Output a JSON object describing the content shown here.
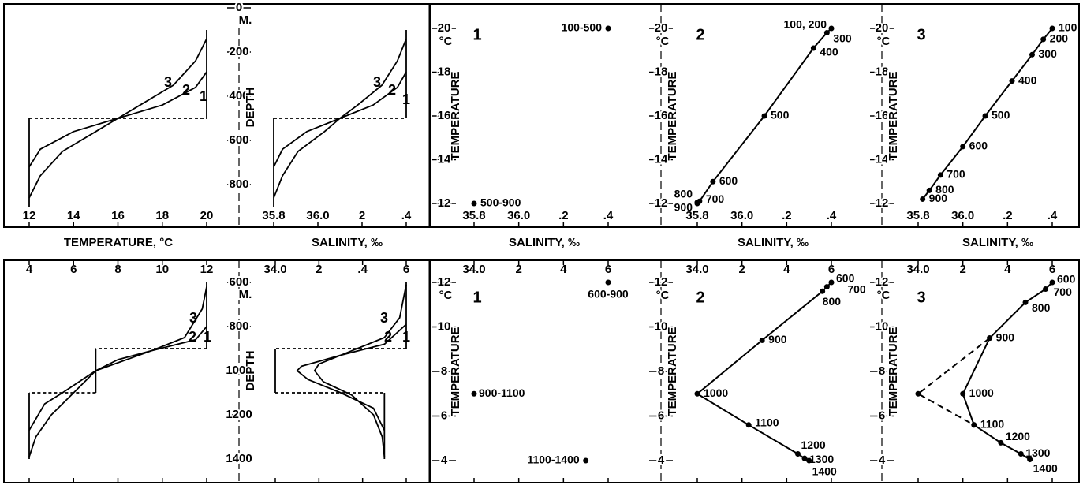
{
  "chart_data": [
    {
      "type": "profile",
      "xlabel": "TEMPERATURE, °C",
      "xlim": [
        12,
        20
      ],
      "xticks": [
        12,
        14,
        16,
        18,
        20
      ],
      "ylim": [
        0,
        900
      ],
      "yticks": [
        0,
        200,
        400,
        600,
        800
      ],
      "ylabel": "DEPTH",
      "yunit": "M.",
      "y_reversed": true,
      "color": "#000",
      "series": [
        {
          "name": "1",
          "style": "step",
          "x": [
            12,
            12,
            20,
            20
          ],
          "values": [
            900,
            500,
            500,
            100
          ]
        },
        {
          "name": "2",
          "x": [
            12,
            12.5,
            14,
            16,
            18,
            19.5,
            20
          ],
          "values": [
            720,
            640,
            560,
            500,
            440,
            360,
            290
          ]
        },
        {
          "name": "3",
          "x": [
            12,
            12.5,
            13.5,
            15,
            16,
            17,
            18.5,
            19.5,
            20
          ],
          "values": [
            860,
            760,
            650,
            560,
            500,
            440,
            350,
            240,
            140
          ]
        }
      ]
    },
    {
      "type": "profile",
      "xlabel": "SALINITY, ‰",
      "xlim": [
        35.8,
        36.4
      ],
      "xticks": [
        35.8,
        {
          "value": 36.0,
          "label": "36.0"
        },
        {
          "value": 36.2,
          "label": "2"
        },
        {
          "value": 36.4,
          "label": ".4"
        }
      ],
      "ylim": [
        0,
        900
      ],
      "y_reversed": true,
      "color": "#000",
      "series": [
        {
          "name": "1",
          "style": "step",
          "x": [
            35.8,
            35.8,
            36.4,
            36.4
          ],
          "values": [
            900,
            500,
            500,
            100
          ]
        },
        {
          "name": "2",
          "x": [
            35.8,
            35.84,
            35.95,
            36.1,
            36.25,
            36.36,
            36.4
          ],
          "values": [
            720,
            640,
            560,
            500,
            440,
            360,
            290
          ]
        },
        {
          "name": "3",
          "x": [
            35.8,
            35.84,
            35.91,
            36.03,
            36.1,
            36.18,
            36.29,
            36.36,
            36.4
          ],
          "values": [
            860,
            760,
            650,
            560,
            500,
            440,
            350,
            240,
            140
          ]
        }
      ]
    },
    {
      "type": "ts",
      "panel": "1",
      "xlabel": "SALINITY, ‰",
      "ylabel": "TEMPERATURE",
      "yunit": "°C",
      "xlim": [
        35.8,
        36.4
      ],
      "xticks": [
        35.8,
        {
          "value": 36.0,
          "label": "36.0"
        },
        {
          "value": 36.2,
          "label": ".2"
        },
        {
          "value": 36.4,
          "label": ".4"
        }
      ],
      "ylim": [
        12,
        20
      ],
      "yticks": [
        12,
        14,
        16,
        18,
        20
      ],
      "color": "#000",
      "series": [
        {
          "x": [
            36.4,
            35.8
          ],
          "values": [
            20,
            12
          ],
          "point_labels": [
            "100-500",
            "500-900"
          ]
        }
      ]
    },
    {
      "type": "ts",
      "panel": "2",
      "xlabel": "SALINITY, ‰",
      "ylabel": "TEMPERATURE",
      "yunit": "°C",
      "xlim": [
        35.8,
        36.4
      ],
      "xticks": [
        35.8,
        {
          "value": 36.0,
          "label": "36.0"
        },
        {
          "value": 36.2,
          "label": ".2"
        },
        {
          "value": 36.4,
          "label": ".4"
        }
      ],
      "ylim": [
        12,
        20
      ],
      "yticks": [
        12,
        14,
        16,
        18,
        20
      ],
      "color": "#000",
      "series": [
        {
          "line": true,
          "x": [
            36.4,
            36.38,
            36.32,
            36.1,
            35.87,
            35.81,
            35.8,
            35.8
          ],
          "values": [
            20,
            19.8,
            19.1,
            16,
            13,
            12.1,
            12.05,
            12.0
          ],
          "point_labels": [
            "100, 200",
            "300",
            "400",
            "500",
            "600",
            "700",
            "800",
            "900"
          ]
        }
      ]
    },
    {
      "type": "ts",
      "panel": "3",
      "xlabel": "SALINITY, ‰",
      "ylabel": "TEMPERATURE",
      "yunit": "°C",
      "xlim": [
        35.8,
        36.4
      ],
      "xticks": [
        35.8,
        {
          "value": 36.0,
          "label": "36.0"
        },
        {
          "value": 36.2,
          "label": ".2"
        },
        {
          "value": 36.4,
          "label": ".4"
        }
      ],
      "ylim": [
        12,
        20
      ],
      "yticks": [
        12,
        14,
        16,
        18,
        20
      ],
      "color": "#000",
      "series": [
        {
          "line": true,
          "x": [
            36.4,
            36.36,
            36.31,
            36.22,
            36.1,
            36.0,
            35.9,
            35.85,
            35.82
          ],
          "values": [
            20,
            19.5,
            18.8,
            17.6,
            16,
            14.6,
            13.3,
            12.6,
            12.2
          ],
          "point_labels": [
            "100",
            "200",
            "300",
            "400",
            "500",
            "600",
            "700",
            "800",
            "900"
          ]
        }
      ]
    },
    {
      "type": "profile",
      "xlim": [
        4,
        12
      ],
      "xticks": [
        4,
        6,
        8,
        10,
        12
      ],
      "ylim": [
        600,
        1400
      ],
      "yticks": [
        600,
        800,
        1000,
        1200,
        1400
      ],
      "ylabel": "DEPTH",
      "yunit": "M.",
      "y_reversed": true,
      "color": "#000",
      "series": [
        {
          "name": "1",
          "style": "step",
          "x": [
            12,
            12,
            7,
            7,
            4,
            4
          ],
          "values": [
            600,
            900,
            900,
            1100,
            1100,
            1400
          ]
        },
        {
          "name": "2",
          "x": [
            4,
            4.7,
            5.5,
            7,
            9.5,
            11.5,
            12
          ],
          "values": [
            1270,
            1150,
            1100,
            1000,
            910,
            860,
            800
          ]
        },
        {
          "name": "3",
          "x": [
            4,
            4.3,
            5,
            6,
            7,
            8,
            9.5,
            11,
            11.8,
            12
          ],
          "values": [
            1390,
            1300,
            1200,
            1100,
            1000,
            950,
            910,
            850,
            720,
            620
          ]
        }
      ]
    },
    {
      "type": "profile",
      "xlim": [
        34.0,
        34.6
      ],
      "xticks": [
        {
          "value": 34.0,
          "label": "34.0"
        },
        {
          "value": 34.2,
          "label": "2"
        },
        {
          "value": 34.4,
          "label": ".4"
        },
        {
          "value": 34.6,
          "label": "6"
        }
      ],
      "ylim": [
        600,
        1400
      ],
      "y_reversed": true,
      "color": "#000",
      "series": [
        {
          "name": "1",
          "style": "step",
          "x": [
            34.6,
            34.6,
            34.0,
            34.0,
            34.5,
            34.5
          ],
          "values": [
            600,
            900,
            900,
            1100,
            1100,
            1400
          ]
        },
        {
          "name": "2",
          "x": [
            34.6,
            34.5,
            34.3,
            34.12,
            34.1,
            34.15,
            34.3,
            34.45,
            34.5
          ],
          "values": [
            790,
            880,
            930,
            980,
            1000,
            1040,
            1100,
            1170,
            1270
          ]
        },
        {
          "name": "3",
          "x": [
            34.6,
            34.57,
            34.5,
            34.35,
            34.2,
            34.18,
            34.22,
            34.35,
            34.45,
            34.49,
            34.5
          ],
          "values": [
            610,
            760,
            850,
            910,
            970,
            1000,
            1050,
            1110,
            1200,
            1300,
            1390
          ]
        }
      ]
    },
    {
      "type": "ts",
      "panel": "1",
      "ylabel": "TEMPERATURE",
      "yunit": "°C",
      "xlim": [
        34.0,
        34.6
      ],
      "xticks": [
        {
          "value": 34.0,
          "label": "34.0"
        },
        {
          "value": 34.2,
          "label": "2"
        },
        {
          "value": 34.4,
          "label": "4"
        },
        {
          "value": 34.6,
          "label": "6"
        }
      ],
      "ylim": [
        4,
        12
      ],
      "yticks": [
        4,
        6,
        8,
        10,
        12
      ],
      "color": "#000",
      "series": [
        {
          "x": [
            34.6,
            34.0,
            34.5
          ],
          "values": [
            12,
            7,
            4
          ],
          "point_labels": [
            "600-900",
            "900-1100",
            "1100-1400"
          ]
        }
      ]
    },
    {
      "type": "ts",
      "panel": "2",
      "ylabel": "TEMPERATURE",
      "yunit": "°C",
      "xlim": [
        34.0,
        34.6
      ],
      "xticks": [
        {
          "value": 34.0,
          "label": "34.0"
        },
        {
          "value": 34.2,
          "label": "2"
        },
        {
          "value": 34.4,
          "label": "4"
        },
        {
          "value": 34.6,
          "label": "6"
        }
      ],
      "ylim": [
        4,
        12
      ],
      "yticks": [
        4,
        6,
        8,
        10,
        12
      ],
      "color": "#000",
      "series": [
        {
          "line": true,
          "x": [
            34.6,
            34.58,
            34.56,
            34.29,
            34.0,
            34.23,
            34.45,
            34.48,
            34.5
          ],
          "values": [
            12,
            11.8,
            11.6,
            9.4,
            7,
            5.6,
            4.3,
            4.1,
            4.0
          ],
          "point_labels": [
            "600",
            "700",
            "800",
            "900",
            "1000",
            "1100",
            "1200",
            "1300",
            "1400"
          ]
        }
      ]
    },
    {
      "type": "ts",
      "panel": "3",
      "ylabel": "TEMPERATURE",
      "yunit": "°C",
      "xlim": [
        34.0,
        34.6
      ],
      "xticks": [
        {
          "value": 34.0,
          "label": "34.0"
        },
        {
          "value": 34.2,
          "label": "2"
        },
        {
          "value": 34.4,
          "label": "4"
        },
        {
          "value": 34.6,
          "label": "6"
        }
      ],
      "ylim": [
        4,
        12
      ],
      "yticks": [
        4,
        6,
        8,
        10,
        12
      ],
      "color": "#000",
      "series": [
        {
          "line": true,
          "x": [
            34.6,
            34.57,
            34.48,
            34.32,
            34.2,
            34.25,
            34.37,
            34.46,
            34.5
          ],
          "values": [
            12,
            11.7,
            11.1,
            9.5,
            7,
            5.6,
            4.8,
            4.3,
            4.05
          ],
          "point_labels": [
            "600",
            "700",
            "800",
            "900",
            "1000",
            "1100",
            "1200",
            "1300",
            "1400"
          ]
        },
        {
          "line": true,
          "dashed": true,
          "x": [
            34.32,
            34.0,
            34.25
          ],
          "values": [
            9.5,
            7,
            5.6
          ]
        }
      ]
    }
  ]
}
